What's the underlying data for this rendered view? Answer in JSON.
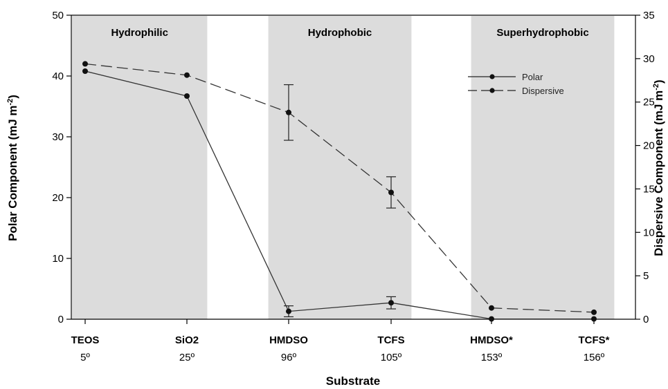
{
  "chart_data": {
    "type": "line",
    "categories": [
      "TEOS",
      "SiO2",
      "HMDSO",
      "TCFS",
      "HMDSO*",
      "TCFS*"
    ],
    "category_sublabels": [
      "5º",
      "25º",
      "96º",
      "105º",
      "153º",
      "156º"
    ],
    "xlabel": "Substrate",
    "ylabel_left": "Polar Component (mJ m",
    "ylabel_right": "Dispersive Component (mJ m",
    "ylabel_sup": "-2",
    "ylabel_close": ")",
    "ylim_left": [
      0,
      50
    ],
    "yticks_left": [
      "0",
      "10",
      "20",
      "30",
      "40",
      "50"
    ],
    "ylim_right": [
      0,
      35
    ],
    "yticks_right": [
      "0",
      "5",
      "10",
      "15",
      "20",
      "25",
      "30",
      "35"
    ],
    "regions": [
      {
        "label": "Hydrophilic",
        "from": 0,
        "to": 1,
        "color": "#dcdcdc"
      },
      {
        "label": "Hydrophobic",
        "from": 2,
        "to": 3,
        "color": "#dcdcdc"
      },
      {
        "label": "Superhydrophobic",
        "from": 4,
        "to": 5,
        "color": "#dcdcdc"
      }
    ],
    "series": [
      {
        "name": "Polar",
        "axis": "left",
        "style": "solid",
        "values": [
          40.8,
          36.7,
          1.3,
          2.7,
          0.05,
          0.05
        ],
        "errors": [
          0,
          0,
          0.9,
          1.0,
          0,
          0
        ]
      },
      {
        "name": "Dispersive",
        "axis": "right",
        "style": "dashed",
        "values": [
          29.4,
          28.1,
          23.8,
          14.6,
          1.3,
          0.8
        ],
        "errors": [
          0,
          0,
          3.2,
          1.8,
          0,
          0
        ]
      }
    ],
    "legend_position": "top-right"
  }
}
